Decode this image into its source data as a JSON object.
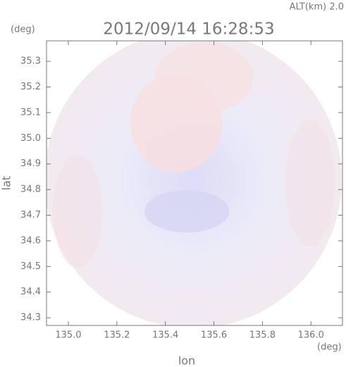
{
  "chart_data": {
    "type": "image",
    "title": "2012/09/14 16:28:53",
    "annotation": "ALT(km) 2.0",
    "x_unit": "(deg)",
    "y_unit": "(deg)",
    "xlabel": "lon",
    "ylabel": "lat",
    "xlim": [
      134.91,
      136.13
    ],
    "ylim": [
      34.27,
      35.38
    ],
    "xticks": [
      {
        "value": 135.0,
        "label": "135.0"
      },
      135.2,
      135.4,
      135.6,
      135.8,
      {
        "value": 136.0,
        "label": "136.0"
      }
    ],
    "yticks": [
      34.3,
      34.4,
      34.5,
      34.6,
      34.7,
      34.8,
      34.9,
      {
        "value": 35.0,
        "label": "35.0"
      },
      35.1,
      35.2,
      35.3
    ]
  }
}
